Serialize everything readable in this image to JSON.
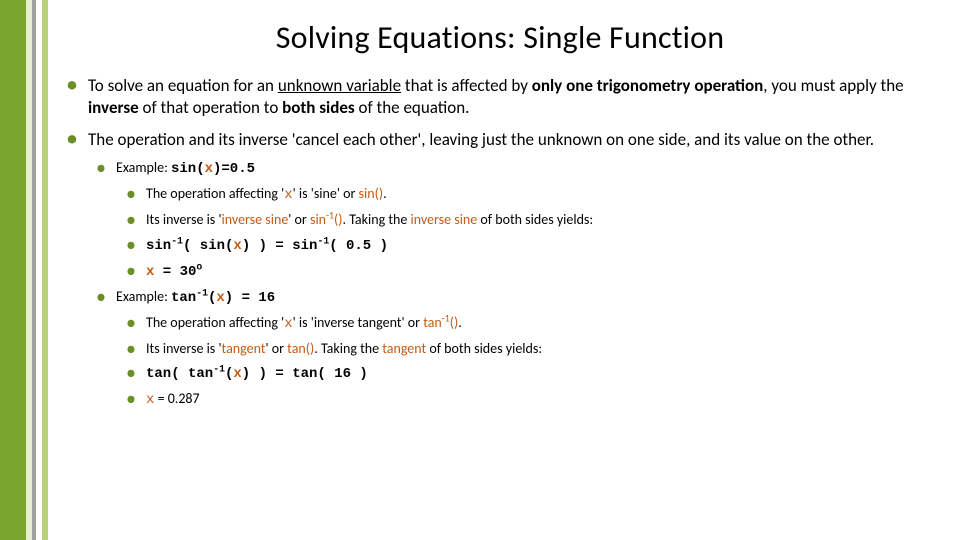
{
  "accent_colors": {
    "bar1": "#7aa52e",
    "bar2": "#e8ecd3",
    "bar3": "#a0a0a0",
    "bar4": "#ffffff",
    "bar5": "#b8d27a",
    "bullet": "#6a8f27",
    "highlight": "#c55a11"
  },
  "title": "Solving Equations: Single Function",
  "b1": {
    "pre": "To solve an equation for an ",
    "uv": "unknown variable",
    "mid1": " that is affected by ",
    "bold1": "only one trigonometry operation",
    "mid2": ", you must apply the ",
    "bold2": "inverse",
    "mid3": " of that operation to ",
    "bold3": "both sides",
    "post": " of the equation."
  },
  "b2": "The operation and its inverse 'cancel each other', leaving just the unknown on one side, and its value on the other.",
  "ex1": {
    "label": "Example: ",
    "code_pre": "sin(",
    "code_x": "x",
    "code_post": ")=0.5",
    "s1_pre": "The operation affecting '",
    "s1_x": "x",
    "s1_post": "' is 'sine' or ",
    "s1_fn": "sin()",
    "s1_end": ".",
    "s2_pre": "Its inverse is '",
    "s2_inv": "inverse sine",
    "s2_mid": "' or ",
    "s2_fn": "sin",
    "s2_sup": "-1",
    "s2_fn_end": "()",
    "s2_p2": ".  Taking the ",
    "s2_inv2": "inverse sine",
    "s2_post": " of both sides yields:",
    "s3_a": "sin",
    "s3_sup": "-1",
    "s3_b": "( sin(",
    "s3_x": "x",
    "s3_c": ") ) = sin",
    "s3_sup2": "-1",
    "s3_d": "( 0.5 )",
    "s4_x": "x",
    "s4_eq": " = 30",
    "s4_sup": "o"
  },
  "ex2": {
    "label": "Example: ",
    "code_a": "tan",
    "code_sup": "-1",
    "code_b": "(",
    "code_x": "x",
    "code_c": ") = 16",
    "s1_pre": "The operation affecting '",
    "s1_x": "x",
    "s1_post": "' is 'inverse tangent' or ",
    "s1_fn": "tan",
    "s1_sup": "-1",
    "s1_fn_end": "()",
    "s1_end": ".",
    "s2_pre": "Its inverse is '",
    "s2_inv": "tangent",
    "s2_mid": "' or ",
    "s2_fn": "tan()",
    "s2_p2": ".  Taking the ",
    "s2_inv2": "tangent",
    "s2_post": " of both sides yields:",
    "s3_a": "tan( tan",
    "s3_sup": "-1",
    "s3_b": "(",
    "s3_x": "x",
    "s3_c": ") ) = tan( 16 )",
    "s4_x": "x",
    "s4_eq": " = 0.287"
  }
}
